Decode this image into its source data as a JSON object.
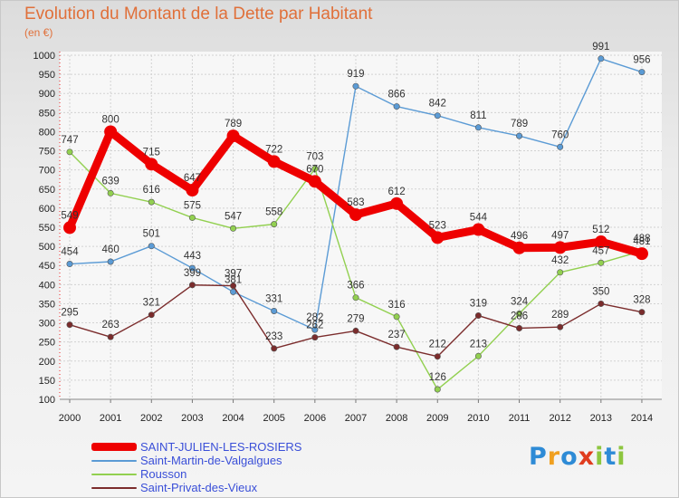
{
  "chart_data": {
    "type": "line",
    "title": "Evolution du Montant de la Dette par Habitant",
    "subtitle": "(en €)",
    "x": [
      "2000",
      "2001",
      "2002",
      "2003",
      "2004",
      "2005",
      "2006",
      "2007",
      "2008",
      "2009",
      "2010",
      "2011",
      "2012",
      "2013",
      "2014"
    ],
    "ylim": [
      100,
      1000
    ],
    "yticks": [
      100,
      150,
      200,
      250,
      300,
      350,
      400,
      450,
      500,
      550,
      600,
      650,
      700,
      750,
      800,
      850,
      900,
      950,
      1000
    ],
    "grid": true,
    "legend_position": "bottom-left",
    "series": [
      {
        "name": "SAINT-JULIEN-LES-ROSIERS",
        "color": "#ee0000",
        "values": [
          549,
          800,
          715,
          647,
          789,
          722,
          670,
          583,
          612,
          523,
          544,
          496,
          497,
          512,
          481
        ],
        "labels": [
          "549",
          "800",
          "715",
          "647",
          "789",
          "722",
          "670",
          "583",
          "612",
          "523",
          "544",
          "496",
          "497",
          "512",
          "481"
        ]
      },
      {
        "name": "Saint-Martin-de-Valgalgues",
        "color": "#5b9bd5",
        "values": [
          454,
          460,
          501,
          443,
          381,
          331,
          282,
          919,
          866,
          842,
          811,
          789,
          760,
          991,
          956
        ],
        "labels": [
          "454",
          "460",
          "501",
          "443",
          "381",
          "331",
          "282",
          "919",
          "866",
          "842",
          "811",
          "789",
          "760",
          "991",
          "956"
        ]
      },
      {
        "name": "Rousson",
        "color": "#92d050",
        "values": [
          747,
          639,
          616,
          575,
          547,
          558,
          703,
          366,
          316,
          126,
          213,
          324,
          432,
          457,
          488
        ],
        "labels": [
          "747",
          "639",
          "616",
          "575",
          "547",
          "558",
          "703",
          "366",
          "316",
          "126",
          "213",
          "324",
          "432",
          "457",
          "488"
        ]
      },
      {
        "name": "Saint-Privat-des-Vieux",
        "color": "#7b2c2c",
        "values": [
          295,
          263,
          321,
          399,
          397,
          233,
          262,
          279,
          237,
          212,
          319,
          286,
          289,
          350,
          328
        ],
        "labels": [
          "295",
          "263",
          "321",
          "399",
          "397",
          "233",
          "262",
          "279",
          "237",
          "212",
          "319",
          "286",
          "289",
          "350",
          "328"
        ]
      }
    ]
  },
  "logo": {
    "letters": [
      "P",
      "r",
      "o",
      "x",
      "i",
      "t",
      "i"
    ],
    "colors": [
      "#2e8bd6",
      "#f0a020",
      "#2e8bd6",
      "#e03c1e",
      "#8dc63f",
      "#2e8bd6",
      "#8dc63f"
    ]
  }
}
